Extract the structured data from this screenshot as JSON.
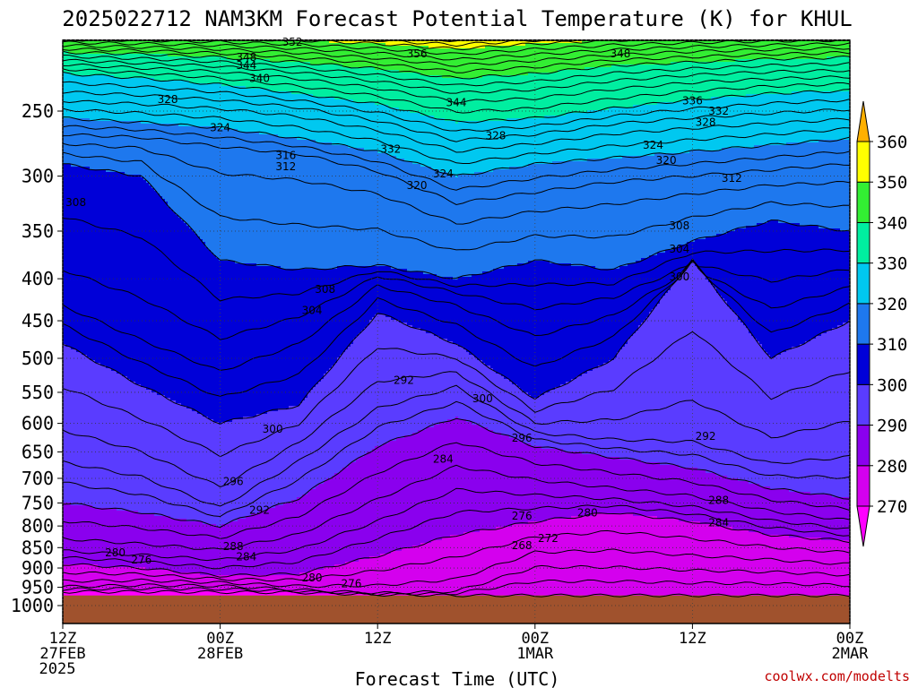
{
  "chart_data": {
    "type": "heatmap",
    "title": "2025022712 NAM3KM Forecast Potential Temperature (K) for KHUL",
    "xlabel": "Forecast Time (UTC)",
    "ylabel": "",
    "units": "K",
    "x_ticks": [
      {
        "label": "12Z",
        "sub": "27FEB",
        "sub2": "2025",
        "hour": 0
      },
      {
        "label": "00Z",
        "sub": "28FEB",
        "sub2": "",
        "hour": 12
      },
      {
        "label": "12Z",
        "sub": "",
        "sub2": "",
        "hour": 24
      },
      {
        "label": "00Z",
        "sub": "1MAR",
        "sub2": "",
        "hour": 36
      },
      {
        "label": "12Z",
        "sub": "",
        "sub2": "",
        "hour": 48
      },
      {
        "label": "00Z",
        "sub": "2MAR",
        "sub2": "",
        "hour": 60
      }
    ],
    "y_ticks": [
      250,
      300,
      350,
      400,
      450,
      500,
      550,
      600,
      650,
      700,
      750,
      800,
      850,
      900,
      950,
      1000
    ],
    "y_axis": "pressure (hPa), log scale, inverted",
    "xlim": [
      0,
      60
    ],
    "ylim": [
      1000,
      200
    ],
    "grid": true,
    "colorbar": {
      "levels": [
        270,
        280,
        290,
        300,
        310,
        320,
        330,
        340,
        350,
        360
      ],
      "colors": [
        "#ff00ff",
        "#d400ee",
        "#8a00ee",
        "#5a3cff",
        "#0000d8",
        "#1e78ee",
        "#00c8f0",
        "#00eea0",
        "#33ee33",
        "#ffff00",
        "#ffb000"
      ],
      "placement": "right"
    },
    "surface_pressure_hpa": 972,
    "isotherm_pressures": {
      "270": [
        [
          0,
          962
        ],
        [
          6,
          962
        ],
        [
          12,
          963
        ],
        [
          18,
          964
        ],
        [
          24,
          970
        ],
        [
          30,
          972
        ],
        [
          36,
          972
        ],
        [
          42,
          972
        ],
        [
          48,
          972
        ],
        [
          54,
          972
        ],
        [
          60,
          972
        ]
      ],
      "275": [
        [
          0,
          945
        ],
        [
          6,
          940
        ],
        [
          12,
          942
        ],
        [
          18,
          955
        ],
        [
          24,
          965
        ],
        [
          30,
          958
        ],
        [
          36,
          880
        ],
        [
          42,
          880
        ],
        [
          48,
          890
        ],
        [
          54,
          895
        ],
        [
          60,
          905
        ]
      ],
      "280": [
        [
          0,
          890
        ],
        [
          6,
          900
        ],
        [
          12,
          920
        ],
        [
          18,
          915
        ],
        [
          24,
          870
        ],
        [
          30,
          820
        ],
        [
          36,
          790
        ],
        [
          42,
          770
        ],
        [
          48,
          790
        ],
        [
          54,
          820
        ],
        [
          60,
          835
        ]
      ],
      "285": [
        [
          0,
          850
        ],
        [
          6,
          860
        ],
        [
          12,
          870
        ],
        [
          18,
          840
        ],
        [
          24,
          770
        ],
        [
          30,
          700
        ],
        [
          36,
          720
        ],
        [
          42,
          735
        ],
        [
          48,
          750
        ],
        [
          54,
          780
        ],
        [
          60,
          800
        ]
      ],
      "290": [
        [
          0,
          750
        ],
        [
          6,
          770
        ],
        [
          12,
          800
        ],
        [
          18,
          740
        ],
        [
          24,
          640
        ],
        [
          30,
          590
        ],
        [
          36,
          640
        ],
        [
          42,
          660
        ],
        [
          48,
          680
        ],
        [
          54,
          720
        ],
        [
          60,
          740
        ]
      ],
      "295": [
        [
          0,
          650
        ],
        [
          6,
          680
        ],
        [
          12,
          750
        ],
        [
          18,
          650
        ],
        [
          24,
          560
        ],
        [
          30,
          530
        ],
        [
          36,
          610
        ],
        [
          42,
          620
        ],
        [
          48,
          620
        ],
        [
          54,
          660
        ],
        [
          60,
          640
        ]
      ],
      "300": [
        [
          0,
          480
        ],
        [
          6,
          540
        ],
        [
          12,
          600
        ],
        [
          18,
          570
        ],
        [
          24,
          440
        ],
        [
          30,
          480
        ],
        [
          36,
          560
        ],
        [
          42,
          500
        ],
        [
          48,
          380
        ],
        [
          54,
          500
        ],
        [
          60,
          450
        ]
      ],
      "305": [
        [
          0,
          420
        ],
        [
          6,
          460
        ],
        [
          12,
          500
        ],
        [
          18,
          460
        ],
        [
          24,
          400
        ],
        [
          30,
          420
        ],
        [
          36,
          450
        ],
        [
          42,
          430
        ],
        [
          48,
          390
        ],
        [
          54,
          420
        ],
        [
          60,
          400
        ]
      ],
      "310": [
        [
          0,
          290
        ],
        [
          6,
          300
        ],
        [
          12,
          380
        ],
        [
          18,
          390
        ],
        [
          24,
          385
        ],
        [
          30,
          400
        ],
        [
          36,
          380
        ],
        [
          42,
          390
        ],
        [
          48,
          360
        ],
        [
          54,
          340
        ],
        [
          60,
          350
        ]
      ],
      "315": [
        [
          0,
          270
        ],
        [
          6,
          272
        ],
        [
          12,
          280
        ],
        [
          18,
          285
        ],
        [
          24,
          300
        ],
        [
          30,
          330
        ],
        [
          36,
          320
        ],
        [
          42,
          310
        ],
        [
          48,
          305
        ],
        [
          54,
          300
        ],
        [
          60,
          295
        ]
      ],
      "320": [
        [
          0,
          255
        ],
        [
          6,
          258
        ],
        [
          12,
          262
        ],
        [
          18,
          270
        ],
        [
          24,
          280
        ],
        [
          30,
          300
        ],
        [
          36,
          290
        ],
        [
          42,
          285
        ],
        [
          48,
          280
        ],
        [
          54,
          275
        ],
        [
          60,
          270
        ]
      ],
      "325": [
        [
          0,
          240
        ],
        [
          6,
          242
        ],
        [
          12,
          245
        ],
        [
          18,
          250
        ],
        [
          24,
          260
        ],
        [
          30,
          275
        ],
        [
          36,
          270
        ],
        [
          42,
          262
        ],
        [
          48,
          258
        ],
        [
          54,
          255
        ],
        [
          60,
          252
        ]
      ],
      "330": [
        [
          0,
          225
        ],
        [
          6,
          228
        ],
        [
          12,
          232
        ],
        [
          18,
          238
        ],
        [
          24,
          245
        ],
        [
          30,
          258
        ],
        [
          36,
          255
        ],
        [
          42,
          248
        ],
        [
          48,
          242
        ],
        [
          54,
          238
        ],
        [
          60,
          236
        ]
      ],
      "335": [
        [
          0,
          218
        ],
        [
          6,
          220
        ],
        [
          12,
          222
        ],
        [
          18,
          226
        ],
        [
          24,
          232
        ],
        [
          30,
          240
        ],
        [
          36,
          238
        ],
        [
          42,
          232
        ],
        [
          48,
          228
        ],
        [
          54,
          226
        ],
        [
          60,
          225
        ]
      ],
      "340": [
        [
          0,
          212
        ],
        [
          6,
          213
        ],
        [
          12,
          215
        ],
        [
          18,
          218
        ],
        [
          24,
          222
        ],
        [
          30,
          228
        ],
        [
          36,
          225
        ],
        [
          42,
          220
        ],
        [
          48,
          218
        ],
        [
          54,
          216
        ],
        [
          60,
          215
        ]
      ],
      "345": [
        [
          0,
          207
        ],
        [
          6,
          208
        ],
        [
          12,
          209
        ],
        [
          18,
          211
        ],
        [
          24,
          214
        ],
        [
          30,
          218
        ],
        [
          36,
          215
        ],
        [
          42,
          212
        ],
        [
          48,
          210
        ],
        [
          54,
          209
        ],
        [
          60,
          208
        ]
      ],
      "350": [
        [
          0,
          203
        ],
        [
          6,
          203
        ],
        [
          12,
          204
        ],
        [
          18,
          205
        ],
        [
          24,
          207
        ],
        [
          30,
          210
        ],
        [
          36,
          207
        ],
        [
          42,
          205
        ],
        [
          48,
          204
        ],
        [
          54,
          203
        ],
        [
          60,
          203
        ]
      ],
      "355": [
        [
          0,
          200
        ],
        [
          6,
          200
        ],
        [
          12,
          200
        ],
        [
          18,
          201
        ],
        [
          24,
          202
        ],
        [
          30,
          204
        ],
        [
          36,
          202
        ],
        [
          42,
          201
        ],
        [
          48,
          200
        ],
        [
          54,
          200
        ],
        [
          60,
          200
        ]
      ]
    },
    "contour_labels": [
      {
        "text": "352",
        "hour": 17.5,
        "p": 206
      },
      {
        "text": "348",
        "hour": 14,
        "p": 215
      },
      {
        "text": "344",
        "hour": 14,
        "p": 220
      },
      {
        "text": "340",
        "hour": 15,
        "p": 228
      },
      {
        "text": "356",
        "hour": 27,
        "p": 213
      },
      {
        "text": "348",
        "hour": 42.5,
        "p": 213
      },
      {
        "text": "344",
        "hour": 30,
        "p": 244
      },
      {
        "text": "336",
        "hour": 48,
        "p": 243
      },
      {
        "text": "332",
        "hour": 50,
        "p": 250
      },
      {
        "text": "328",
        "hour": 49,
        "p": 258
      },
      {
        "text": "328",
        "hour": 8,
        "p": 242
      },
      {
        "text": "324",
        "hour": 12,
        "p": 262
      },
      {
        "text": "328",
        "hour": 33,
        "p": 268
      },
      {
        "text": "332",
        "hour": 25,
        "p": 278
      },
      {
        "text": "324",
        "hour": 45,
        "p": 275
      },
      {
        "text": "320",
        "hour": 46,
        "p": 287
      },
      {
        "text": "316",
        "hour": 17,
        "p": 283
      },
      {
        "text": "312",
        "hour": 17,
        "p": 292
      },
      {
        "text": "324",
        "hour": 29,
        "p": 298
      },
      {
        "text": "320",
        "hour": 27,
        "p": 308
      },
      {
        "text": "312",
        "hour": 51,
        "p": 302
      },
      {
        "text": "308",
        "hour": 1,
        "p": 323
      },
      {
        "text": "308",
        "hour": 47,
        "p": 345
      },
      {
        "text": "304",
        "hour": 47,
        "p": 368
      },
      {
        "text": "300",
        "hour": 47,
        "p": 398
      },
      {
        "text": "308",
        "hour": 20,
        "p": 412
      },
      {
        "text": "304",
        "hour": 19,
        "p": 437
      },
      {
        "text": "292",
        "hour": 26,
        "p": 532
      },
      {
        "text": "300",
        "hour": 32,
        "p": 560
      },
      {
        "text": "300",
        "hour": 16,
        "p": 610
      },
      {
        "text": "296",
        "hour": 35,
        "p": 625
      },
      {
        "text": "292",
        "hour": 49,
        "p": 622
      },
      {
        "text": "284",
        "hour": 29,
        "p": 663
      },
      {
        "text": "296",
        "hour": 13,
        "p": 706
      },
      {
        "text": "292",
        "hour": 15,
        "p": 765
      },
      {
        "text": "288",
        "hour": 50,
        "p": 744
      },
      {
        "text": "280",
        "hour": 40,
        "p": 771
      },
      {
        "text": "276",
        "hour": 35,
        "p": 778
      },
      {
        "text": "284",
        "hour": 50,
        "p": 793
      },
      {
        "text": "272",
        "hour": 37,
        "p": 828
      },
      {
        "text": "268",
        "hour": 35,
        "p": 845
      },
      {
        "text": "288",
        "hour": 13,
        "p": 847
      },
      {
        "text": "284",
        "hour": 14,
        "p": 872
      },
      {
        "text": "280",
        "hour": 4,
        "p": 862
      },
      {
        "text": "276",
        "hour": 6,
        "p": 880
      },
      {
        "text": "280",
        "hour": 19,
        "p": 925
      },
      {
        "text": "276",
        "hour": 22,
        "p": 940
      }
    ]
  },
  "credit": "coolwx.com/modelts"
}
